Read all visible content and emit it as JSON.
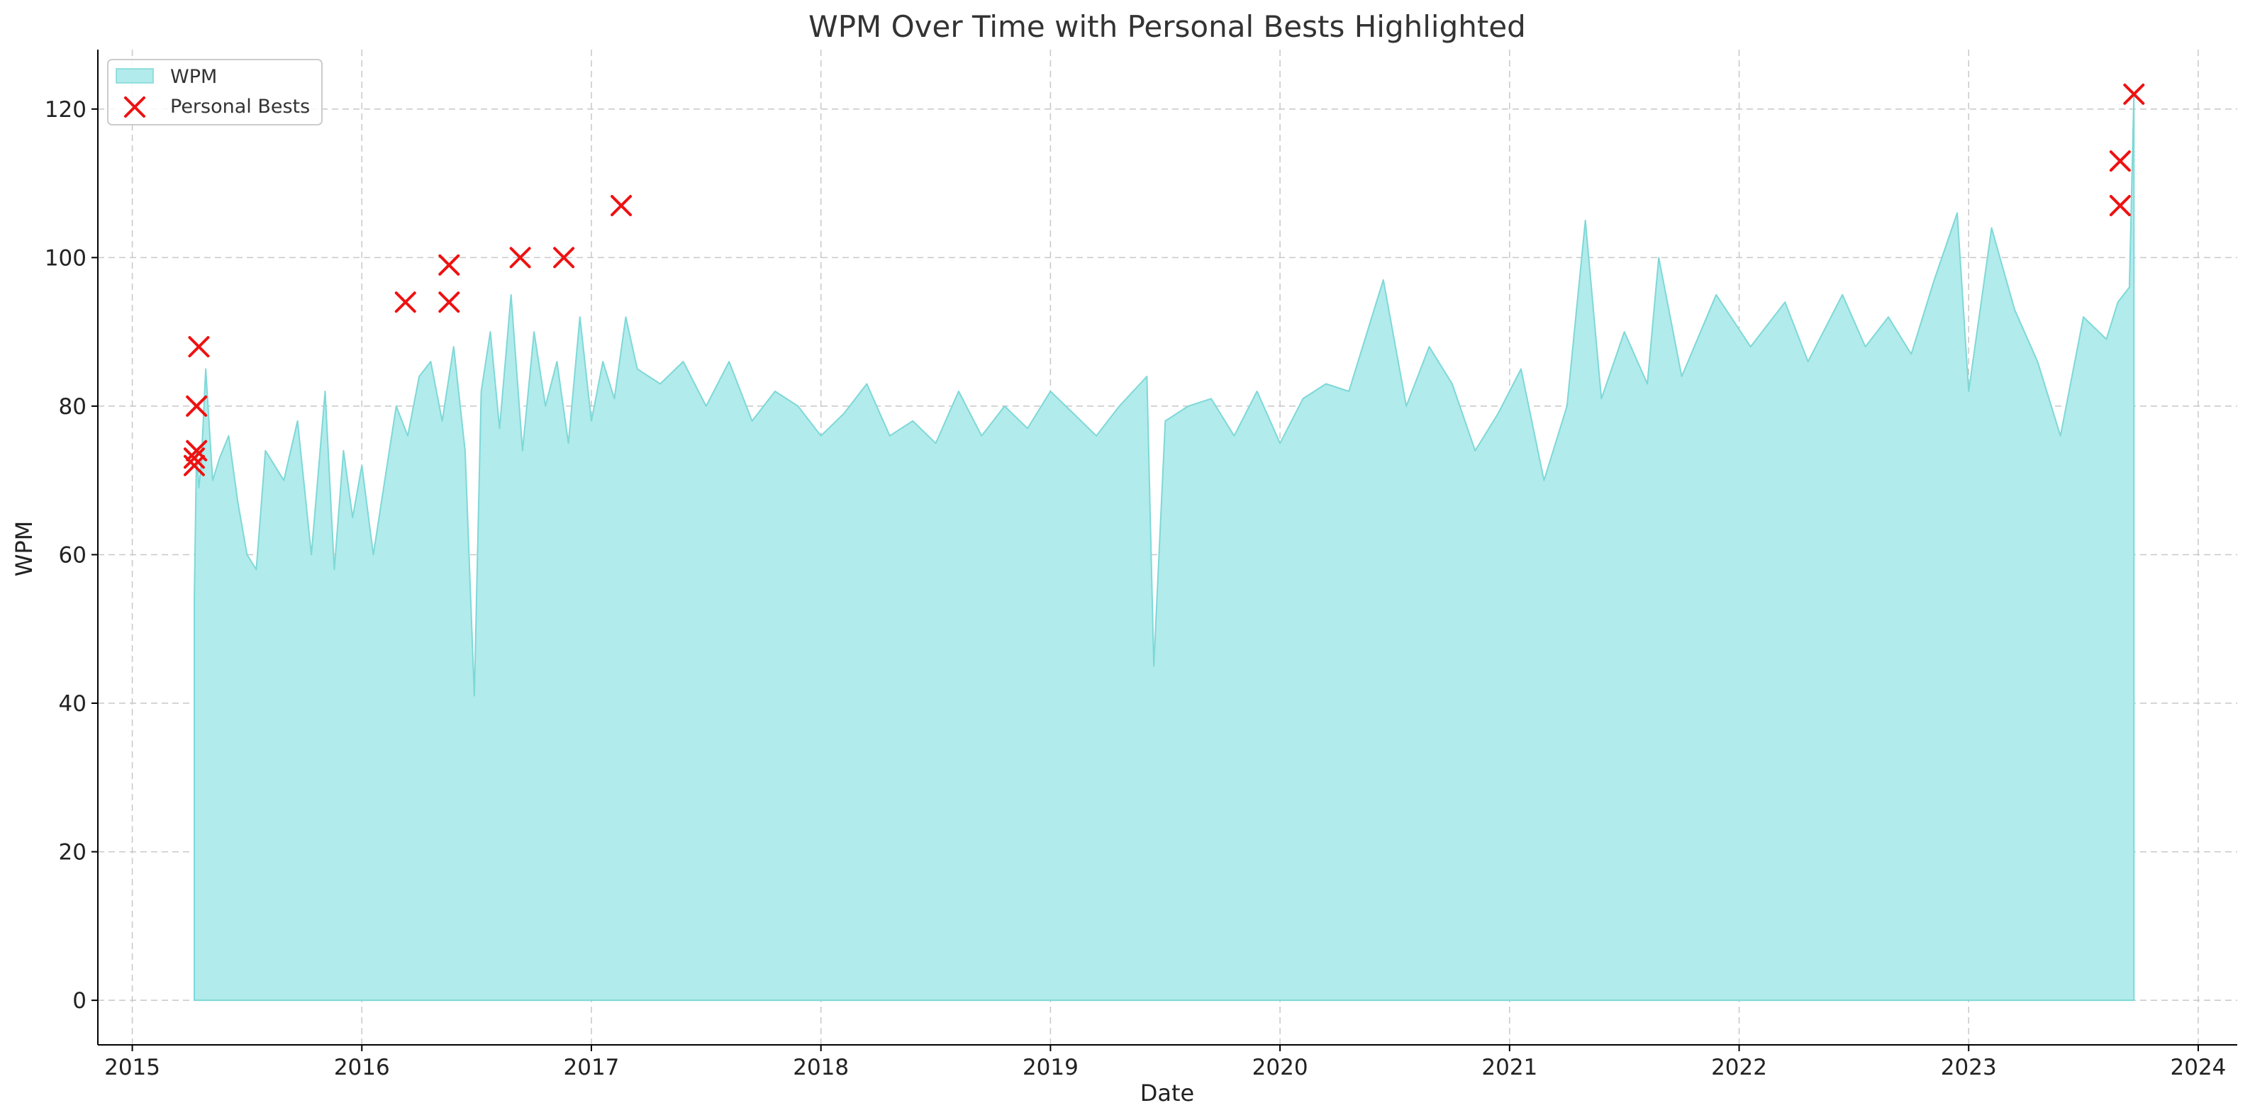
{
  "chart_data": {
    "type": "area",
    "title": "WPM Over Time with Personal Bests Highlighted",
    "xlabel": "Date",
    "ylabel": "WPM",
    "xlim": [
      2014.85,
      2024.17
    ],
    "ylim": [
      -6,
      128
    ],
    "x_ticks": [
      "2015",
      "2016",
      "2017",
      "2018",
      "2019",
      "2020",
      "2021",
      "2022",
      "2023",
      "2024"
    ],
    "y_ticks": [
      "0",
      "20",
      "40",
      "60",
      "80",
      "100",
      "120"
    ],
    "grid": true,
    "legend_position": "top-left",
    "colors": {
      "fill": "#b2ebeb",
      "line": "#7ed8d8",
      "marker": "#ee1111"
    },
    "series": [
      {
        "name": "WPM",
        "kind": "area",
        "x": [
          2015.27,
          2015.28,
          2015.29,
          2015.3,
          2015.32,
          2015.35,
          2015.38,
          2015.42,
          2015.46,
          2015.5,
          2015.54,
          2015.58,
          2015.62,
          2015.66,
          2015.72,
          2015.78,
          2015.84,
          2015.88,
          2015.92,
          2015.96,
          2016.0,
          2016.05,
          2016.1,
          2016.15,
          2016.2,
          2016.25,
          2016.3,
          2016.35,
          2016.4,
          2016.45,
          2016.49,
          2016.52,
          2016.56,
          2016.6,
          2016.65,
          2016.7,
          2016.75,
          2016.8,
          2016.85,
          2016.9,
          2016.95,
          2017.0,
          2017.05,
          2017.1,
          2017.15,
          2017.2,
          2017.3,
          2017.4,
          2017.5,
          2017.6,
          2017.7,
          2017.8,
          2017.9,
          2018.0,
          2018.1,
          2018.2,
          2018.3,
          2018.4,
          2018.5,
          2018.6,
          2018.7,
          2018.8,
          2018.9,
          2019.0,
          2019.1,
          2019.2,
          2019.3,
          2019.42,
          2019.45,
          2019.5,
          2019.6,
          2019.7,
          2019.8,
          2019.9,
          2020.0,
          2020.1,
          2020.2,
          2020.3,
          2020.45,
          2020.55,
          2020.65,
          2020.75,
          2020.85,
          2020.95,
          2021.05,
          2021.15,
          2021.25,
          2021.33,
          2021.4,
          2021.5,
          2021.6,
          2021.65,
          2021.75,
          2021.9,
          2022.05,
          2022.2,
          2022.3,
          2022.45,
          2022.55,
          2022.65,
          2022.75,
          2022.85,
          2022.95,
          2023.0,
          2023.1,
          2023.2,
          2023.3,
          2023.4,
          2023.5,
          2023.6,
          2023.65,
          2023.7,
          2023.72
        ],
        "y": [
          54,
          74,
          69,
          72,
          85,
          70,
          73,
          76,
          67,
          60,
          58,
          74,
          72,
          70,
          78,
          60,
          82,
          58,
          74,
          65,
          72,
          60,
          70,
          80,
          76,
          84,
          86,
          78,
          88,
          74,
          41,
          82,
          90,
          77,
          95,
          74,
          90,
          80,
          86,
          75,
          92,
          78,
          86,
          81,
          92,
          85,
          83,
          86,
          80,
          86,
          78,
          82,
          80,
          76,
          79,
          83,
          76,
          78,
          75,
          82,
          76,
          80,
          77,
          82,
          79,
          76,
          80,
          84,
          45,
          78,
          80,
          81,
          76,
          82,
          75,
          81,
          83,
          82,
          97,
          80,
          88,
          83,
          74,
          79,
          85,
          70,
          80,
          105,
          81,
          90,
          83,
          100,
          84,
          95,
          88,
          94,
          86,
          95,
          88,
          92,
          87,
          97,
          106,
          82,
          104,
          93,
          86,
          76,
          92,
          89,
          94,
          96,
          122
        ]
      },
      {
        "name": "Personal Bests",
        "kind": "scatter",
        "x": [
          2015.27,
          2015.27,
          2015.28,
          2015.28,
          2015.29,
          2016.19,
          2016.38,
          2016.38,
          2016.69,
          2016.88,
          2017.13,
          2023.66,
          2023.66,
          2023.72
        ],
        "y": [
          72,
          73,
          74,
          80,
          88,
          94,
          94,
          99,
          100,
          100,
          107,
          107,
          113,
          122
        ]
      }
    ]
  }
}
